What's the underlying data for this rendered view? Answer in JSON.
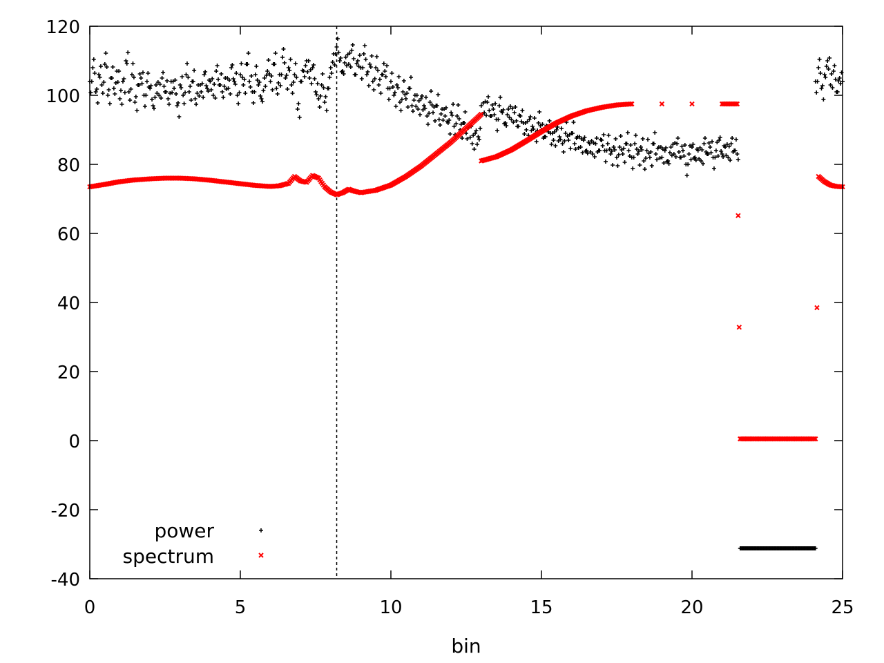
{
  "chart_data": {
    "type": "scatter",
    "title": "",
    "xlabel": "bin",
    "ylabel": "",
    "xlim": [
      0,
      25
    ],
    "ylim": [
      -40,
      120
    ],
    "xticks": [
      0,
      5,
      10,
      15,
      20,
      25
    ],
    "yticks": [
      -40,
      -20,
      0,
      20,
      40,
      60,
      80,
      100,
      120
    ],
    "grid": false,
    "legend_position": "bottom-left",
    "vertical_marker_x": 8.2,
    "series": [
      {
        "name": "power",
        "marker": "+",
        "color": "#000000",
        "points": [
          [
            0.0,
            104
          ],
          [
            0.1,
            108
          ],
          [
            0.2,
            101
          ],
          [
            0.3,
            106
          ],
          [
            0.4,
            103
          ],
          [
            0.5,
            109
          ],
          [
            0.6,
            100
          ],
          [
            0.7,
            105
          ],
          [
            0.8,
            102
          ],
          [
            0.9,
            107
          ],
          [
            1.0,
            99
          ],
          [
            1.1,
            104
          ],
          [
            1.2,
            110
          ],
          [
            1.3,
            101
          ],
          [
            1.4,
            106
          ],
          [
            1.5,
            98
          ],
          [
            1.6,
            103
          ],
          [
            1.7,
            105
          ],
          [
            1.8,
            100
          ],
          [
            1.9,
            104
          ],
          [
            2.0,
            102
          ],
          [
            2.1,
            97
          ],
          [
            2.2,
            103
          ],
          [
            2.3,
            100
          ],
          [
            2.4,
            105
          ],
          [
            2.5,
            101
          ],
          [
            2.6,
            99
          ],
          [
            2.7,
            104
          ],
          [
            2.8,
            102
          ],
          [
            2.9,
            97
          ],
          [
            3.0,
            103
          ],
          [
            3.1,
            100
          ],
          [
            3.2,
            106
          ],
          [
            3.3,
            101
          ],
          [
            3.4,
            104
          ],
          [
            3.5,
            99
          ],
          [
            3.6,
            103
          ],
          [
            3.7,
            101
          ],
          [
            3.8,
            106
          ],
          [
            3.9,
            102
          ],
          [
            4.0,
            104
          ],
          [
            4.1,
            100
          ],
          [
            4.2,
            107
          ],
          [
            4.3,
            103
          ],
          [
            4.4,
            101
          ],
          [
            4.5,
            105
          ],
          [
            4.6,
            102
          ],
          [
            4.7,
            108
          ],
          [
            4.8,
            104
          ],
          [
            4.9,
            100
          ],
          [
            5.0,
            106
          ],
          [
            5.1,
            103
          ],
          [
            5.2,
            109
          ],
          [
            5.3,
            104
          ],
          [
            5.4,
            101
          ],
          [
            5.5,
            106
          ],
          [
            5.6,
            103
          ],
          [
            5.7,
            99
          ],
          [
            5.8,
            105
          ],
          [
            5.9,
            107
          ],
          [
            6.0,
            104
          ],
          [
            6.1,
            109
          ],
          [
            6.2,
            102
          ],
          [
            6.3,
            106
          ],
          [
            6.4,
            111
          ],
          [
            6.5,
            105
          ],
          [
            6.6,
            108
          ],
          [
            6.7,
            103
          ],
          [
            6.8,
            106
          ],
          [
            6.9,
            96
          ],
          [
            7.0,
            104
          ],
          [
            7.1,
            107
          ],
          [
            7.2,
            110
          ],
          [
            7.3,
            105
          ],
          [
            7.4,
            108
          ],
          [
            7.5,
            101
          ],
          [
            7.6,
            99
          ],
          [
            7.7,
            103
          ],
          [
            7.8,
            98
          ],
          [
            7.9,
            102
          ],
          [
            8.0,
            108
          ],
          [
            8.1,
            112
          ],
          [
            8.2,
            114
          ],
          [
            8.3,
            110
          ],
          [
            8.4,
            107
          ],
          [
            8.5,
            111
          ],
          [
            8.6,
            109
          ],
          [
            8.7,
            113
          ],
          [
            8.8,
            106
          ],
          [
            8.9,
            110
          ],
          [
            9.0,
            108
          ],
          [
            9.1,
            112
          ],
          [
            9.2,
            106
          ],
          [
            9.3,
            109
          ],
          [
            9.4,
            104
          ],
          [
            9.5,
            108
          ],
          [
            9.6,
            103
          ],
          [
            9.7,
            106
          ],
          [
            9.8,
            107
          ],
          [
            9.9,
            102
          ],
          [
            10.0,
            104
          ],
          [
            10.1,
            100
          ],
          [
            10.2,
            103
          ],
          [
            10.3,
            98
          ],
          [
            10.4,
            101
          ],
          [
            10.5,
            99
          ],
          [
            10.6,
            102
          ],
          [
            10.7,
            97
          ],
          [
            10.8,
            100
          ],
          [
            10.9,
            96
          ],
          [
            11.0,
            99
          ],
          [
            11.1,
            97
          ],
          [
            11.2,
            94
          ],
          [
            11.3,
            98
          ],
          [
            11.4,
            95
          ],
          [
            11.5,
            97
          ],
          [
            11.6,
            93
          ],
          [
            11.7,
            96
          ],
          [
            11.8,
            94
          ],
          [
            11.9,
            92
          ],
          [
            12.0,
            95
          ],
          [
            12.1,
            91
          ],
          [
            12.2,
            94
          ],
          [
            12.3,
            90
          ],
          [
            12.4,
            92
          ],
          [
            12.5,
            89
          ],
          [
            12.6,
            91
          ],
          [
            12.7,
            86
          ],
          [
            12.8,
            89
          ],
          [
            12.9,
            88
          ],
          [
            13.0,
            97
          ],
          [
            13.1,
            95
          ],
          [
            13.2,
            98
          ],
          [
            13.3,
            94
          ],
          [
            13.4,
            96
          ],
          [
            13.5,
            93
          ],
          [
            13.6,
            97
          ],
          [
            13.7,
            95
          ],
          [
            13.8,
            92
          ],
          [
            13.9,
            96
          ],
          [
            14.0,
            93
          ],
          [
            14.1,
            95
          ],
          [
            14.2,
            91
          ],
          [
            14.3,
            94
          ],
          [
            14.4,
            92
          ],
          [
            14.5,
            90
          ],
          [
            14.6,
            93
          ],
          [
            14.7,
            91
          ],
          [
            14.8,
            89
          ],
          [
            14.9,
            92
          ],
          [
            15.0,
            90
          ],
          [
            15.1,
            88
          ],
          [
            15.2,
            91
          ],
          [
            15.3,
            89
          ],
          [
            15.4,
            87
          ],
          [
            15.5,
            90
          ],
          [
            15.6,
            88
          ],
          [
            15.7,
            86
          ],
          [
            15.8,
            89
          ],
          [
            15.9,
            87
          ],
          [
            16.0,
            89
          ],
          [
            16.1,
            86
          ],
          [
            16.2,
            88
          ],
          [
            16.3,
            85
          ],
          [
            16.4,
            87
          ],
          [
            16.5,
            84
          ],
          [
            16.6,
            86
          ],
          [
            16.7,
            83
          ],
          [
            16.8,
            86
          ],
          [
            16.9,
            84
          ],
          [
            17.0,
            87
          ],
          [
            17.1,
            84
          ],
          [
            17.2,
            86
          ],
          [
            17.3,
            83
          ],
          [
            17.4,
            85
          ],
          [
            17.5,
            82
          ],
          [
            17.6,
            85
          ],
          [
            17.7,
            83
          ],
          [
            17.8,
            86
          ],
          [
            17.9,
            84
          ],
          [
            18.0,
            82
          ],
          [
            18.1,
            86
          ],
          [
            18.2,
            83
          ],
          [
            18.3,
            85
          ],
          [
            18.4,
            81
          ],
          [
            18.5,
            84
          ],
          [
            18.6,
            82
          ],
          [
            18.7,
            86
          ],
          [
            18.8,
            83
          ],
          [
            18.9,
            85
          ],
          [
            19.0,
            82
          ],
          [
            19.1,
            84
          ],
          [
            19.2,
            81
          ],
          [
            19.3,
            85
          ],
          [
            19.4,
            83
          ],
          [
            19.5,
            86
          ],
          [
            19.6,
            82
          ],
          [
            19.7,
            84
          ],
          [
            19.8,
            80
          ],
          [
            19.9,
            83
          ],
          [
            20.0,
            85
          ],
          [
            20.1,
            82
          ],
          [
            20.2,
            84
          ],
          [
            20.3,
            81
          ],
          [
            20.4,
            86
          ],
          [
            20.5,
            83
          ],
          [
            20.6,
            85
          ],
          [
            20.7,
            82
          ],
          [
            20.8,
            84
          ],
          [
            20.9,
            87
          ],
          [
            21.0,
            83
          ],
          [
            21.1,
            85
          ],
          [
            21.2,
            82
          ],
          [
            21.3,
            86
          ],
          [
            21.4,
            84
          ],
          [
            21.5,
            83
          ],
          [
            24.1,
            104
          ],
          [
            24.2,
            108
          ],
          [
            24.3,
            102
          ],
          [
            24.4,
            106
          ],
          [
            24.5,
            110
          ],
          [
            24.6,
            103
          ],
          [
            24.7,
            107
          ],
          [
            24.8,
            101
          ],
          [
            24.9,
            105
          ],
          [
            25.0,
            104
          ]
        ]
      },
      {
        "name": "spectrum",
        "marker": "x",
        "color": "#ff0000",
        "points": [
          [
            0.0,
            73.5
          ],
          [
            0.5,
            74.2
          ],
          [
            1.0,
            75.0
          ],
          [
            1.5,
            75.5
          ],
          [
            2.0,
            75.8
          ],
          [
            2.5,
            76.0
          ],
          [
            3.0,
            76.0
          ],
          [
            3.5,
            75.8
          ],
          [
            4.0,
            75.4
          ],
          [
            4.5,
            74.9
          ],
          [
            5.0,
            74.4
          ],
          [
            5.5,
            73.9
          ],
          [
            6.0,
            73.6
          ],
          [
            6.3,
            73.8
          ],
          [
            6.6,
            74.5
          ],
          [
            6.8,
            76.5
          ],
          [
            7.0,
            75.2
          ],
          [
            7.2,
            74.8
          ],
          [
            7.4,
            76.8
          ],
          [
            7.6,
            76.0
          ],
          [
            7.8,
            73.5
          ],
          [
            8.0,
            72.0
          ],
          [
            8.2,
            71.2
          ],
          [
            8.4,
            71.8
          ],
          [
            8.6,
            72.8
          ],
          [
            8.8,
            72.2
          ],
          [
            9.0,
            71.8
          ],
          [
            9.5,
            72.5
          ],
          [
            10.0,
            74.0
          ],
          [
            10.5,
            76.5
          ],
          [
            11.0,
            79.5
          ],
          [
            11.5,
            83.0
          ],
          [
            12.0,
            86.5
          ],
          [
            12.5,
            90.5
          ],
          [
            13.0,
            94.5
          ],
          [
            13.0,
            81.0
          ],
          [
            13.5,
            82.2
          ],
          [
            14.0,
            84.2
          ],
          [
            14.5,
            86.8
          ],
          [
            15.0,
            89.5
          ],
          [
            15.5,
            92.0
          ],
          [
            16.0,
            94.0
          ],
          [
            16.5,
            95.5
          ],
          [
            17.0,
            96.5
          ],
          [
            17.5,
            97.2
          ],
          [
            18.0,
            97.5
          ],
          [
            19.0,
            97.5
          ],
          [
            20.0,
            97.5
          ],
          [
            21.0,
            97.5
          ],
          [
            21.5,
            97.5
          ],
          [
            21.6,
            0.5
          ],
          [
            22.0,
            0.5
          ],
          [
            22.5,
            0.5
          ],
          [
            23.0,
            0.5
          ],
          [
            23.5,
            0.5
          ],
          [
            24.0,
            0.5
          ],
          [
            24.1,
            0.5
          ],
          [
            24.2,
            76.5
          ],
          [
            24.4,
            75.0
          ],
          [
            24.6,
            74.0
          ],
          [
            24.8,
            73.6
          ],
          [
            25.0,
            73.5
          ]
        ]
      },
      {
        "name": "",
        "marker": "+",
        "color": "#000000",
        "points": [
          [
            21.6,
            -31.2
          ],
          [
            22.0,
            -31.2
          ],
          [
            22.4,
            -31.2
          ],
          [
            22.8,
            -31.2
          ],
          [
            23.2,
            -31.2
          ],
          [
            23.6,
            -31.2
          ],
          [
            24.0,
            -31.2
          ],
          [
            24.1,
            -31.2
          ]
        ]
      }
    ]
  }
}
